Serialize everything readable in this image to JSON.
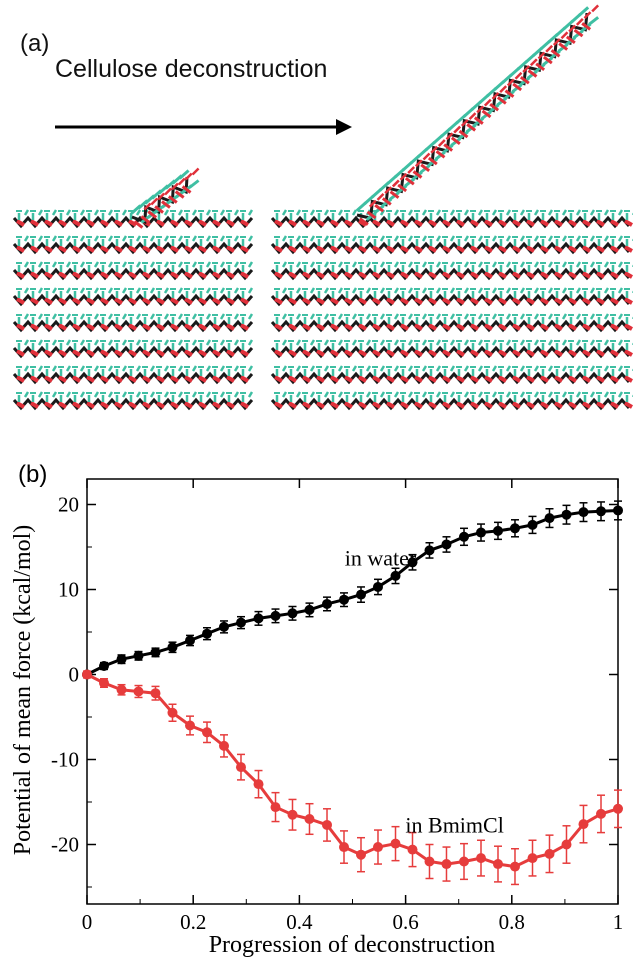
{
  "panel_a": {
    "label": "(a)",
    "headline": "Cellulose deconstruction",
    "colors": {
      "carbon": "#3fbfa3",
      "oxygen": "#e0303a",
      "backbone": "#1a1a1a",
      "arrow": "#000000"
    }
  },
  "chart_data": {
    "type": "line",
    "panel_label": "(b)",
    "title": "",
    "xlabel": "Progression of deconstruction",
    "ylabel": "Potential of mean force (kcal/mol)",
    "xlim": [
      0,
      1
    ],
    "ylim": [
      -27,
      23
    ],
    "xticks": [
      0,
      0.2,
      0.4,
      0.6,
      0.8,
      1
    ],
    "xtick_labels": [
      "0",
      "0.2",
      "0.4",
      "0.6",
      "0.8",
      "1"
    ],
    "yticks": [
      20,
      10,
      0,
      -10,
      -20
    ],
    "ytick_labels": [
      "20",
      "10",
      "0",
      "-10",
      "-20"
    ],
    "grid": false,
    "annotations": [
      {
        "text": "in water",
        "x": 0.62,
        "y": 12.8
      },
      {
        "text": "in BmimCl",
        "x": 0.785,
        "y": -18.6
      }
    ],
    "series": [
      {
        "color": "#000000",
        "x": [
          0,
          0.032,
          0.065,
          0.097,
          0.129,
          0.161,
          0.194,
          0.226,
          0.258,
          0.29,
          0.323,
          0.355,
          0.387,
          0.419,
          0.452,
          0.484,
          0.516,
          0.548,
          0.581,
          0.613,
          0.645,
          0.677,
          0.71,
          0.742,
          0.774,
          0.806,
          0.839,
          0.871,
          0.903,
          0.935,
          0.968,
          1
        ],
        "y": [
          0,
          1.0,
          1.8,
          2.2,
          2.6,
          3.2,
          4.0,
          4.8,
          5.6,
          6.1,
          6.6,
          6.9,
          7.2,
          7.6,
          8.3,
          8.8,
          9.4,
          10.3,
          11.6,
          13.2,
          14.6,
          15.3,
          16.2,
          16.7,
          16.9,
          17.2,
          17.6,
          18.4,
          18.8,
          19.1,
          19.2,
          19.3
        ],
        "err": [
          0.3,
          0.4,
          0.5,
          0.5,
          0.5,
          0.6,
          0.6,
          0.7,
          0.7,
          0.7,
          0.8,
          0.8,
          0.8,
          0.8,
          0.8,
          0.8,
          0.9,
          0.9,
          0.9,
          0.9,
          0.9,
          0.9,
          1.0,
          1.0,
          1.0,
          1.0,
          1.0,
          1.1,
          1.1,
          1.1,
          1.1,
          1.1
        ]
      },
      {
        "color": "#e63c3c",
        "x": [
          0,
          0.032,
          0.065,
          0.097,
          0.129,
          0.161,
          0.194,
          0.226,
          0.258,
          0.29,
          0.323,
          0.355,
          0.387,
          0.419,
          0.452,
          0.484,
          0.516,
          0.548,
          0.581,
          0.613,
          0.645,
          0.677,
          0.71,
          0.742,
          0.774,
          0.806,
          0.839,
          0.871,
          0.903,
          0.935,
          0.968,
          1
        ],
        "y": [
          0,
          -1.0,
          -1.8,
          -2.0,
          -2.2,
          -4.5,
          -6.0,
          -6.8,
          -8.4,
          -10.9,
          -12.9,
          -15.6,
          -16.5,
          -17.0,
          -17.7,
          -20.3,
          -21.2,
          -20.3,
          -19.9,
          -20.6,
          -22.0,
          -22.3,
          -22.0,
          -21.6,
          -22.3,
          -22.6,
          -21.6,
          -21.1,
          -20.0,
          -17.6,
          -16.4,
          -15.8
        ],
        "err": [
          0.4,
          0.5,
          0.6,
          0.7,
          0.8,
          1.0,
          1.1,
          1.2,
          1.3,
          1.5,
          1.6,
          1.7,
          1.8,
          1.8,
          1.9,
          1.9,
          2.0,
          2.0,
          2.0,
          2.0,
          2.0,
          2.0,
          2.1,
          2.1,
          2.1,
          2.1,
          2.1,
          2.2,
          2.2,
          2.2,
          2.2,
          2.2
        ]
      }
    ]
  }
}
